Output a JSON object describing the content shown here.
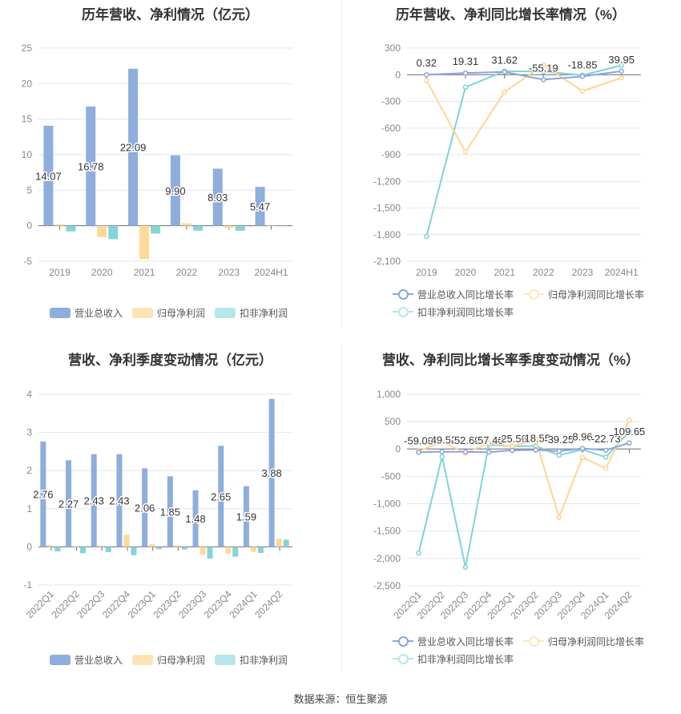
{
  "colors": {
    "revenue": "#8eaedc",
    "net_profit": "#ffd998",
    "deducted": "#86d4d7",
    "revenue_line": "#8aa6da",
    "net_line": "#ffd68f",
    "deducted_line": "#7fd4d5"
  },
  "source": "数据来源：恒生聚源",
  "chart_data": [
    {
      "type": "bar",
      "title": "历年营收、净利情况（亿元）",
      "categories": [
        "2019",
        "2020",
        "2021",
        "2022",
        "2023",
        "2024H1"
      ],
      "ylim": [
        -5,
        25
      ],
      "yticks": [
        "25",
        "20",
        "15",
        "10",
        "5",
        "0",
        "-5"
      ],
      "ytick_values": [
        25,
        20,
        15,
        10,
        5,
        0,
        -5
      ],
      "series": [
        {
          "name": "营业总收入",
          "values": [
            14.07,
            16.78,
            22.09,
            9.9,
            8.03,
            5.47
          ],
          "labels": [
            "14.07",
            "16.78",
            "22.09",
            "9.90",
            "8.03",
            "5.47"
          ]
        },
        {
          "name": "归母净利润",
          "values": [
            0.2,
            -1.6,
            -4.7,
            0.35,
            -0.3,
            0.05
          ]
        },
        {
          "name": "扣非净利润",
          "values": [
            -0.8,
            -1.9,
            -1.1,
            -0.7,
            -0.7,
            0.0
          ]
        }
      ],
      "legend": "bottom"
    },
    {
      "type": "line",
      "title": "历年营收、净利同比增长率情况（%）",
      "categories": [
        "2019",
        "2020",
        "2021",
        "2022",
        "2023",
        "2024H1"
      ],
      "ylim": [
        -2100,
        300
      ],
      "yticks": [
        "300",
        "0",
        "-300",
        "-600",
        "-900",
        "-1,200",
        "-1,500",
        "-1,800",
        "-2,100"
      ],
      "ytick_values": [
        300,
        0,
        -300,
        -600,
        -900,
        -1200,
        -1500,
        -1800,
        -2100
      ],
      "series": [
        {
          "name": "营业总收入同比增长率",
          "values": [
            0.32,
            19.31,
            31.62,
            -55.19,
            -18.85,
            39.95
          ],
          "labels": [
            "0.32",
            "19.31",
            "31.62",
            "-55.19",
            "-18.85",
            "39.95"
          ]
        },
        {
          "name": "归母净利润同比增长率",
          "values": [
            -65,
            -870,
            -195,
            110,
            -185,
            -35
          ]
        },
        {
          "name": "扣非净利润同比增长率",
          "values": [
            -1820,
            -140,
            40,
            35,
            -5,
            105
          ]
        }
      ],
      "legend": "bottom"
    },
    {
      "type": "bar",
      "title": "营收、净利季度变动情况（亿元）",
      "categories": [
        "2022Q1",
        "2022Q2",
        "2022Q3",
        "2022Q4",
        "2023Q1",
        "2023Q2",
        "2023Q3",
        "2023Q4",
        "2024Q1",
        "2024Q2"
      ],
      "ylim": [
        -1,
        4
      ],
      "yticks": [
        "4",
        "3",
        "2",
        "1",
        "0",
        "-1"
      ],
      "ytick_values": [
        4,
        3,
        2,
        1,
        0,
        -1
      ],
      "series": [
        {
          "name": "营业总收入",
          "values": [
            2.76,
            2.27,
            2.43,
            2.43,
            2.06,
            1.85,
            1.48,
            2.65,
            1.59,
            3.88
          ],
          "labels": [
            "2.76",
            "2.27",
            "2.43",
            "2.43",
            "2.06",
            "1.85",
            "1.48",
            "2.65",
            "1.59",
            "3.88"
          ]
        },
        {
          "name": "归母净利润",
          "values": [
            0.04,
            0.01,
            0.03,
            0.32,
            0.07,
            0.04,
            -0.21,
            -0.17,
            -0.13,
            0.22
          ]
        },
        {
          "name": "扣非净利润",
          "values": [
            -0.12,
            -0.17,
            -0.14,
            -0.22,
            -0.06,
            -0.07,
            -0.31,
            -0.26,
            -0.16,
            0.19
          ]
        }
      ],
      "legend": "bottom"
    },
    {
      "type": "line",
      "title": "营收、净利同比增长率季度变动情况（%）",
      "categories": [
        "2022Q1",
        "2022Q2",
        "2022Q3",
        "2022Q4",
        "2023Q1",
        "2023Q2",
        "2023Q3",
        "2023Q4",
        "2024Q1",
        "2024Q2"
      ],
      "ylim": [
        -2500,
        1000
      ],
      "yticks": [
        "1,000",
        "500",
        "0",
        "-500",
        "-1,000",
        "-1,500",
        "-2,000",
        "-2,500"
      ],
      "ytick_values": [
        1000,
        500,
        0,
        -500,
        -1000,
        -1500,
        -2000,
        -2500
      ],
      "series": [
        {
          "name": "营业总收入同比增长率",
          "values": [
            -59.0,
            -49.52,
            -52.69,
            -57.4,
            -25.56,
            -18.55,
            -39.25,
            8.96,
            -22.73,
            109.65
          ],
          "labels": [
            "-59.00",
            "-49.52",
            "-52.69",
            "-57.40",
            "-25.56",
            "-18.55",
            "-39.25",
            "8.96",
            "-22.73",
            "109.65"
          ]
        },
        {
          "name": "归母净利润同比增长率",
          "values": [
            -40,
            130,
            -75,
            110,
            45,
            165,
            -1250,
            -155,
            -355,
            530
          ]
        },
        {
          "name": "扣非净利润同比增长率",
          "values": [
            -1900,
            -140,
            -2160,
            80,
            50,
            55,
            -115,
            -10,
            -150,
            320
          ]
        }
      ],
      "legend": "bottom"
    }
  ]
}
